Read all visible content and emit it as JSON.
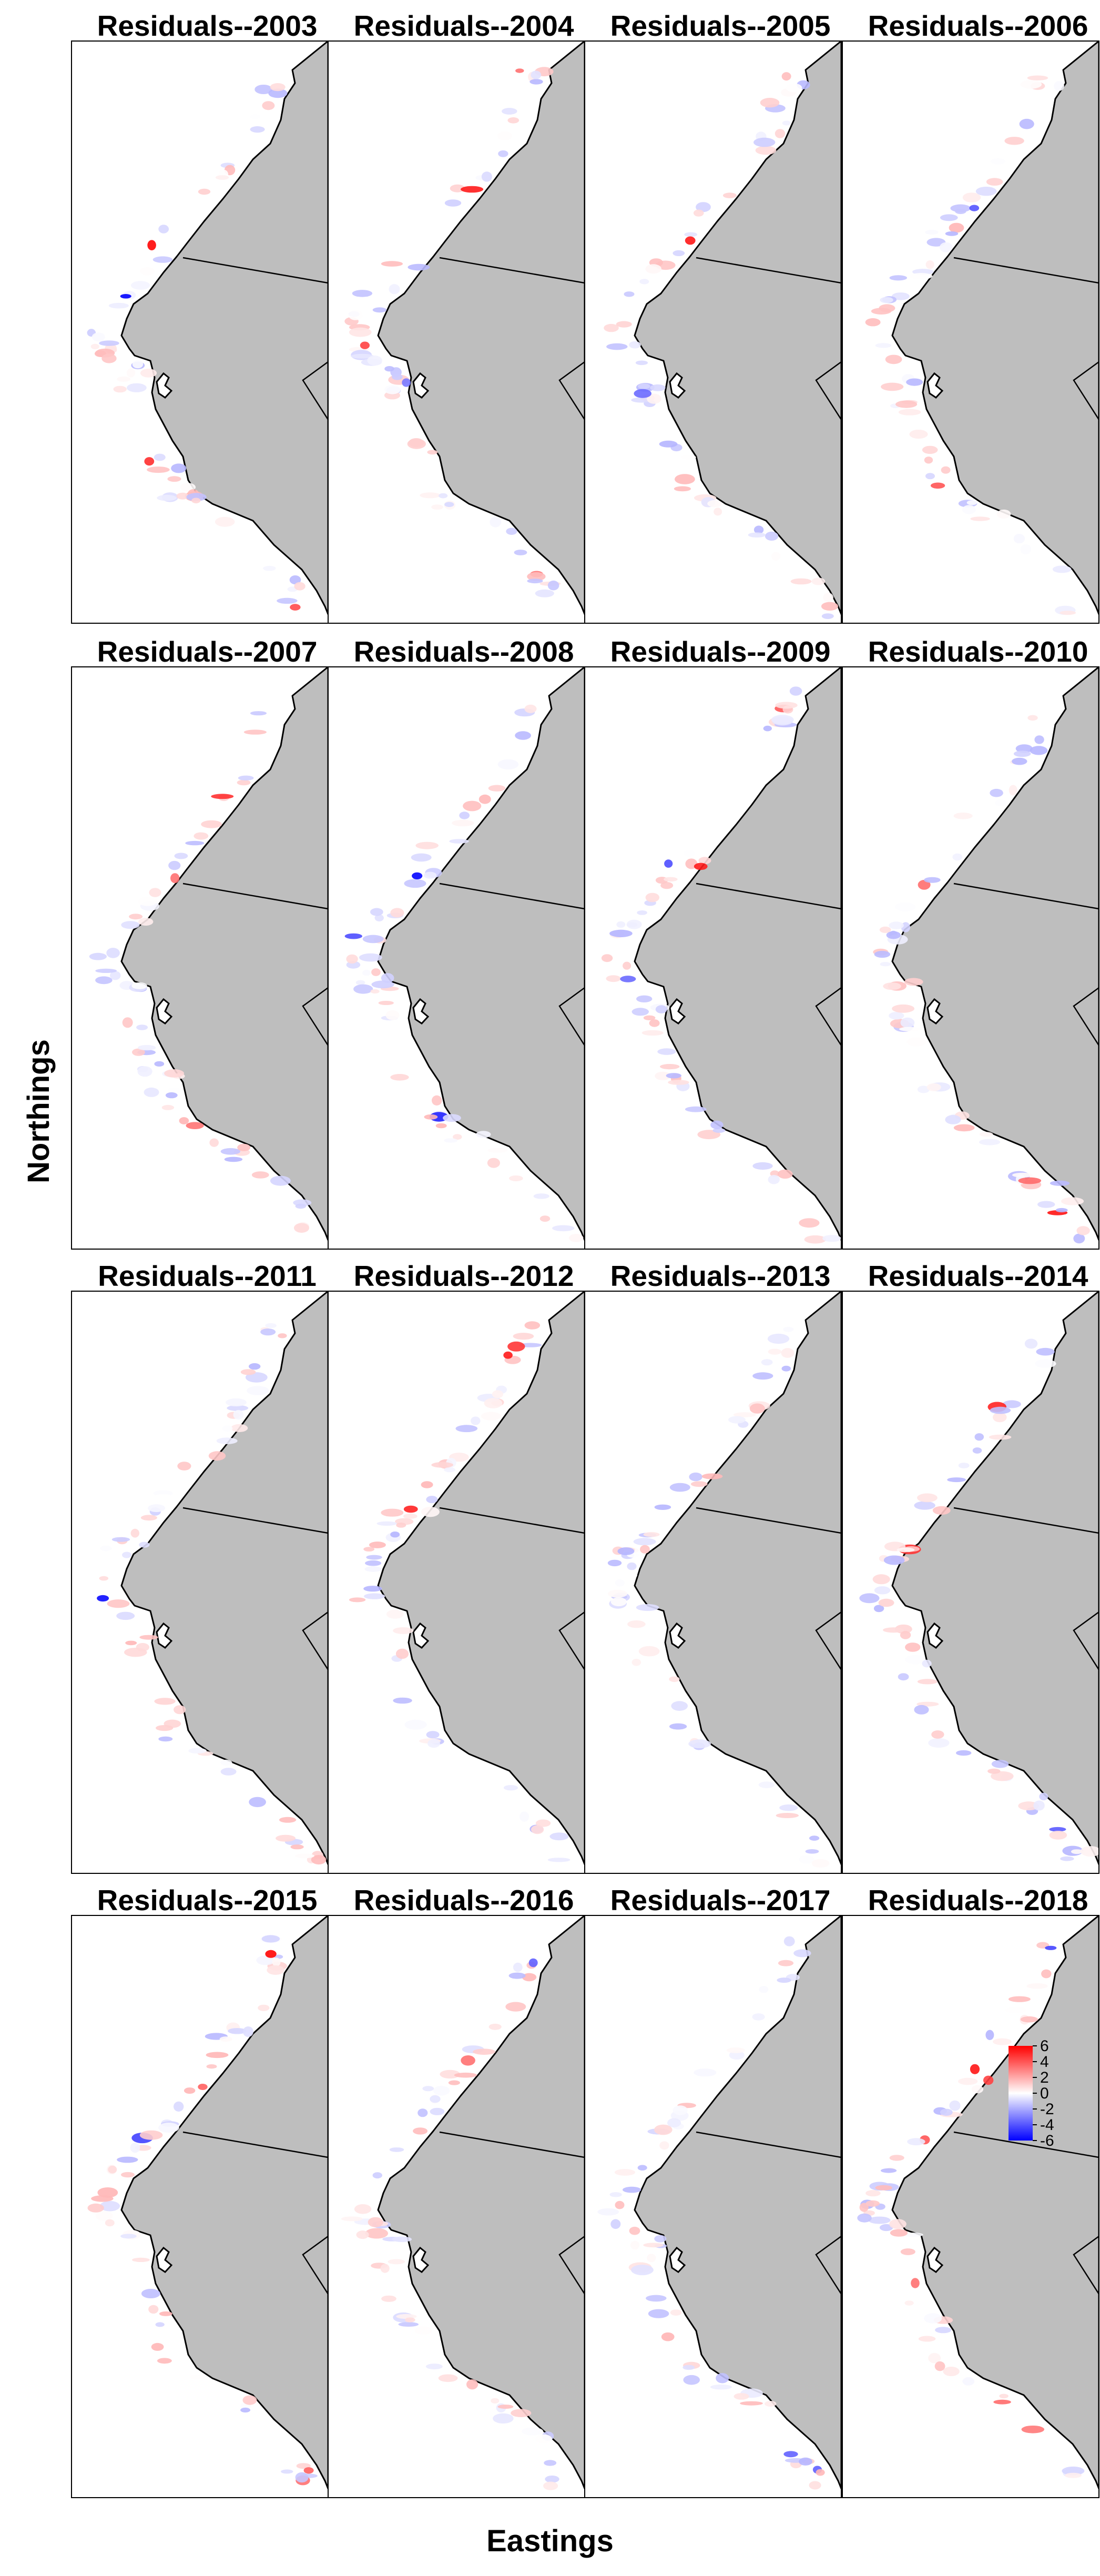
{
  "figure": {
    "xlabel": "Eastings",
    "ylabel": "Northings",
    "layout": {
      "rows": 4,
      "cols": 4
    },
    "panel_titles": [
      "Residuals--2003",
      "Residuals--2004",
      "Residuals--2005",
      "Residuals--2006",
      "Residuals--2007",
      "Residuals--2008",
      "Residuals--2009",
      "Residuals--2010",
      "Residuals--2011",
      "Residuals--2012",
      "Residuals--2013",
      "Residuals--2014",
      "Residuals--2015",
      "Residuals--2016",
      "Residuals--2017",
      "Residuals--2018"
    ],
    "colors": {
      "land": "#bebebe",
      "coast": "#000000",
      "positive": "#ff0000",
      "zero": "#ffffff",
      "negative": "#0000ff"
    }
  },
  "colorbar": {
    "min": -6,
    "max": 6,
    "ticks": [
      "6",
      "4",
      "2",
      "0",
      "-2",
      "-4",
      "-6"
    ],
    "location_panel": "Residuals--2018"
  }
}
